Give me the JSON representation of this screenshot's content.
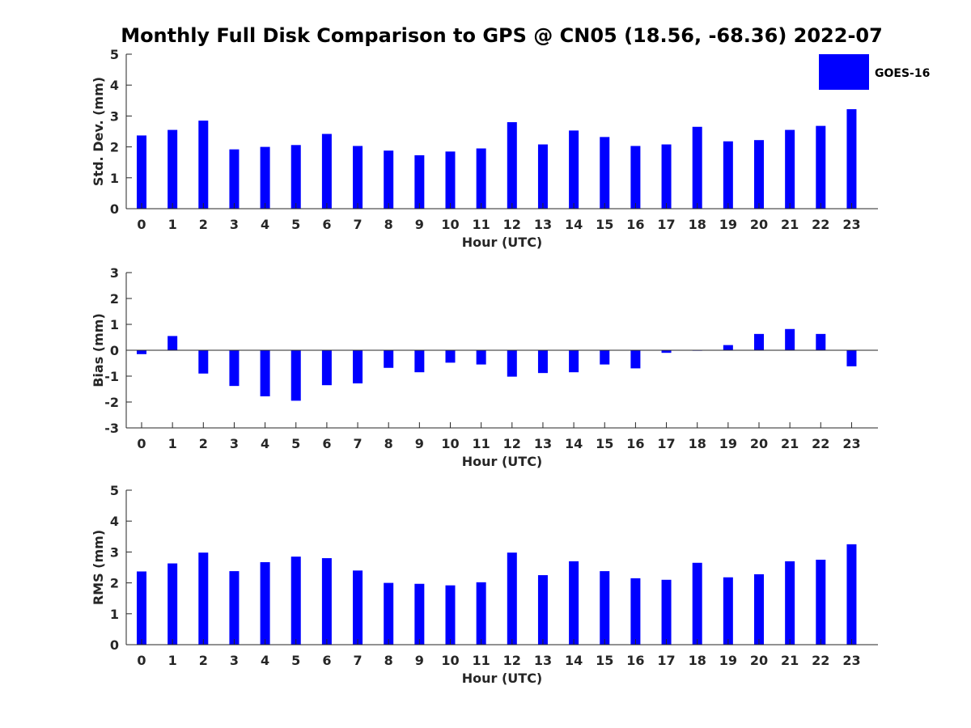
{
  "title": "Monthly Full Disk Comparison to GPS @ CN05 (18.56, -68.36) 2022-07",
  "legend": {
    "label": "GOES-16",
    "color": "#0000ff"
  },
  "chart_data": [
    {
      "type": "bar",
      "series_name": "GOES-16",
      "categories": [
        "0",
        "1",
        "2",
        "3",
        "4",
        "5",
        "6",
        "7",
        "8",
        "9",
        "10",
        "11",
        "12",
        "13",
        "14",
        "15",
        "16",
        "17",
        "18",
        "19",
        "20",
        "21",
        "22",
        "23"
      ],
      "values": [
        2.37,
        2.55,
        2.85,
        1.92,
        2.0,
        2.06,
        2.42,
        2.03,
        1.88,
        1.73,
        1.85,
        1.95,
        2.8,
        2.08,
        2.53,
        2.32,
        2.03,
        2.08,
        2.65,
        2.18,
        2.22,
        2.55,
        2.68,
        3.22
      ],
      "xlabel": "Hour (UTC)",
      "ylabel": "Std. Dev. (mm)",
      "ylim": [
        0,
        5
      ],
      "yticks": [
        "0",
        "1",
        "2",
        "3",
        "4",
        "5"
      ],
      "color": "#0000ff"
    },
    {
      "type": "bar",
      "series_name": "GOES-16",
      "categories": [
        "0",
        "1",
        "2",
        "3",
        "4",
        "5",
        "6",
        "7",
        "8",
        "9",
        "10",
        "11",
        "12",
        "13",
        "14",
        "15",
        "16",
        "17",
        "18",
        "19",
        "20",
        "21",
        "22",
        "23"
      ],
      "values": [
        -0.15,
        0.55,
        -0.9,
        -1.38,
        -1.78,
        -1.95,
        -1.35,
        -1.28,
        -0.68,
        -0.85,
        -0.48,
        -0.55,
        -1.02,
        -0.88,
        -0.85,
        -0.55,
        -0.7,
        -0.1,
        -0.02,
        0.2,
        0.63,
        0.82,
        0.63,
        -0.62
      ],
      "xlabel": "Hour (UTC)",
      "ylabel": "Bias (mm)",
      "ylim": [
        -3,
        3
      ],
      "yticks": [
        "-3",
        "-2",
        "-1",
        "0",
        "1",
        "2",
        "3"
      ],
      "color": "#0000ff"
    },
    {
      "type": "bar",
      "series_name": "GOES-16",
      "categories": [
        "0",
        "1",
        "2",
        "3",
        "4",
        "5",
        "6",
        "7",
        "8",
        "9",
        "10",
        "11",
        "12",
        "13",
        "14",
        "15",
        "16",
        "17",
        "18",
        "19",
        "20",
        "21",
        "22",
        "23"
      ],
      "values": [
        2.37,
        2.63,
        2.98,
        2.38,
        2.67,
        2.85,
        2.8,
        2.4,
        2.0,
        1.97,
        1.92,
        2.02,
        2.98,
        2.25,
        2.7,
        2.38,
        2.15,
        2.1,
        2.65,
        2.18,
        2.28,
        2.7,
        2.75,
        3.25
      ],
      "xlabel": "Hour (UTC)",
      "ylabel": "RMS (mm)",
      "ylim": [
        0,
        5
      ],
      "yticks": [
        "0",
        "1",
        "2",
        "3",
        "4",
        "5"
      ],
      "color": "#0000ff"
    }
  ]
}
